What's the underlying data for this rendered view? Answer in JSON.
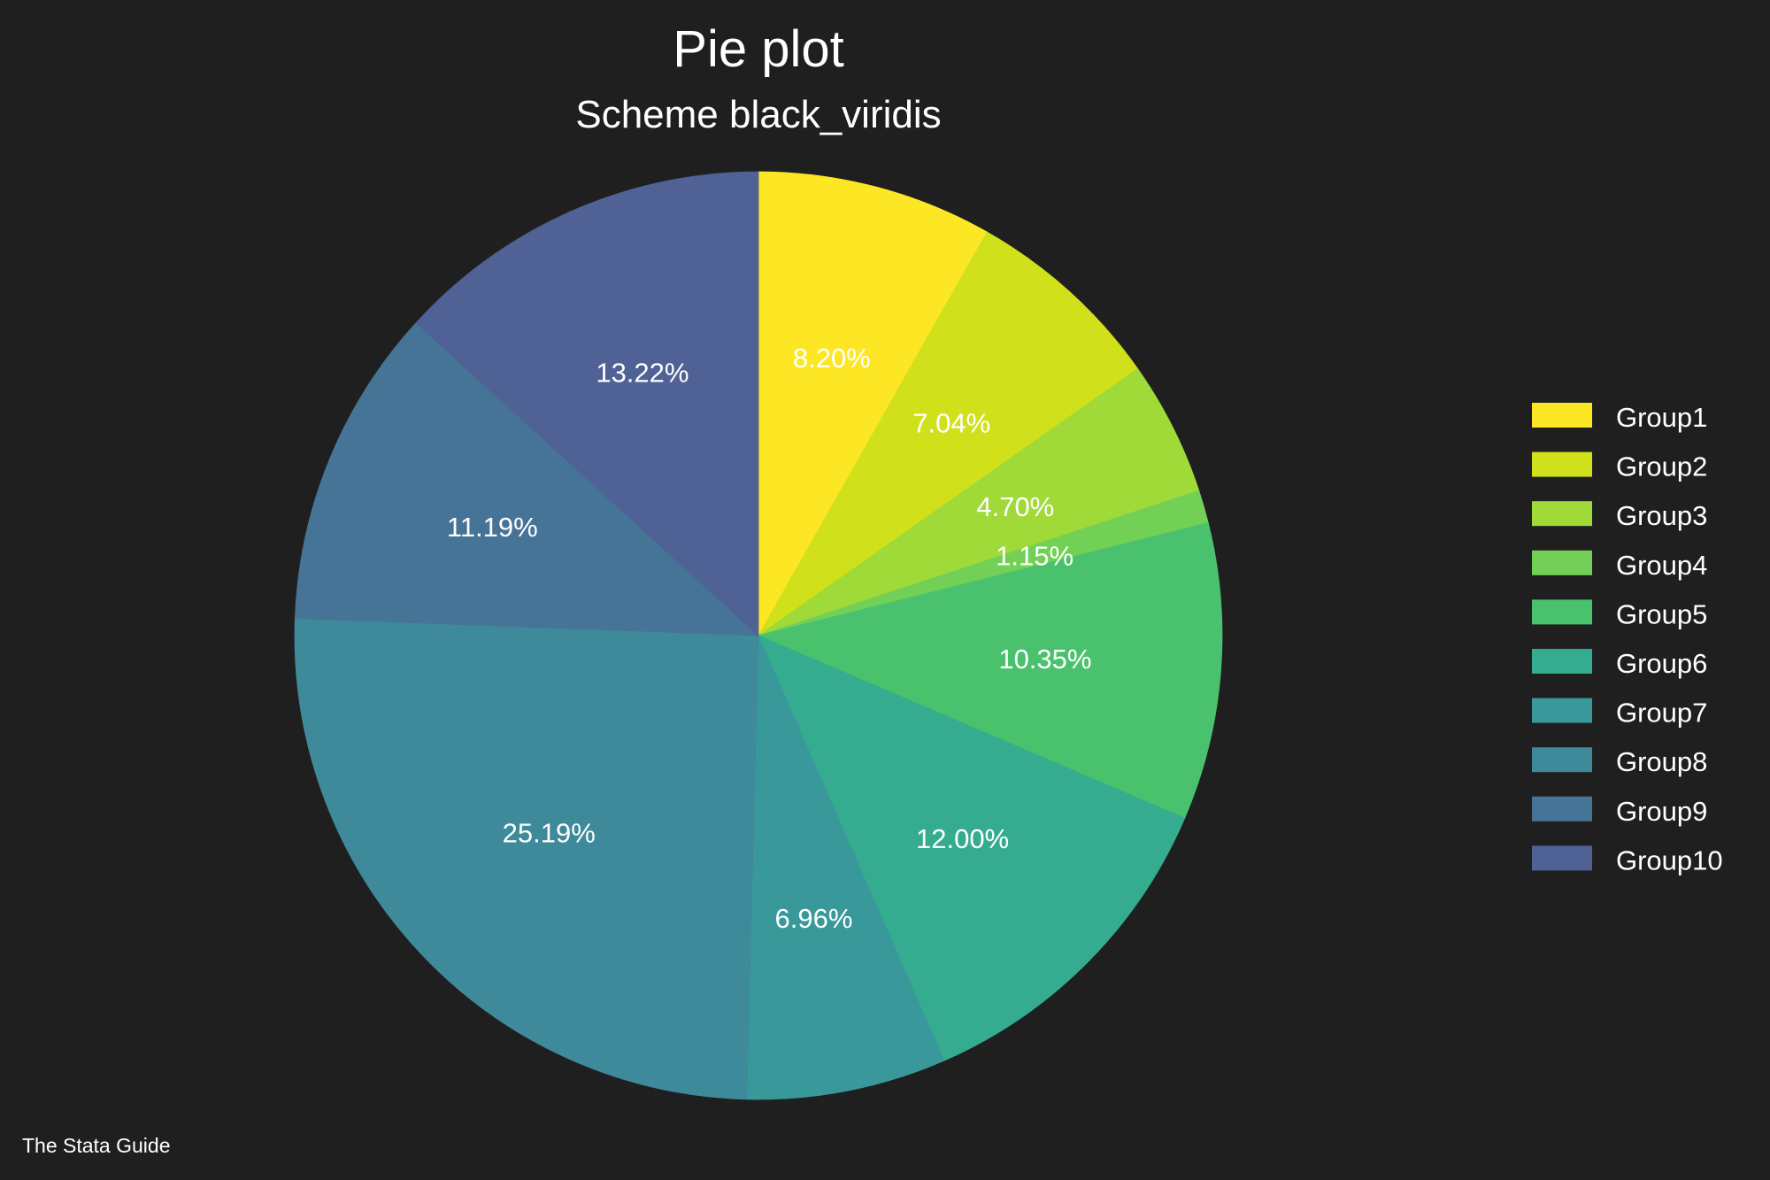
{
  "chart_data": {
    "type": "pie",
    "title": "Pie plot",
    "subtitle": "Scheme black_viridis",
    "note": "The Stata Guide",
    "legend_position": "right",
    "start_angle": "12 o'clock, clockwise",
    "slices": [
      {
        "name": "Group1",
        "value": 8.2,
        "label": "8.20%",
        "color": "#fde725"
      },
      {
        "name": "Group2",
        "value": 7.04,
        "label": "7.04%",
        "color": "#d0e11c"
      },
      {
        "name": "Group3",
        "value": 4.7,
        "label": "4.70%",
        "color": "#a0da39"
      },
      {
        "name": "Group4",
        "value": 1.15,
        "label": "1.15%",
        "color": "#73d056"
      },
      {
        "name": "Group5",
        "value": 10.35,
        "label": "10.35%",
        "color": "#4ac16d"
      },
      {
        "name": "Group6",
        "value": 12.0,
        "label": "12.00%",
        "color": "#35ac8f"
      },
      {
        "name": "Group7",
        "value": 6.96,
        "label": "6.96%",
        "color": "#39999a"
      },
      {
        "name": "Group8",
        "value": 25.19,
        "label": "25.19%",
        "color": "#3e8a9a"
      },
      {
        "name": "Group9",
        "value": 11.19,
        "label": "11.19%",
        "color": "#467496"
      },
      {
        "name": "Group10",
        "value": 13.22,
        "label": "13.22%",
        "color": "#4f6195"
      }
    ]
  },
  "background_color": "#1f1f1f",
  "text_color": "#ffffff"
}
